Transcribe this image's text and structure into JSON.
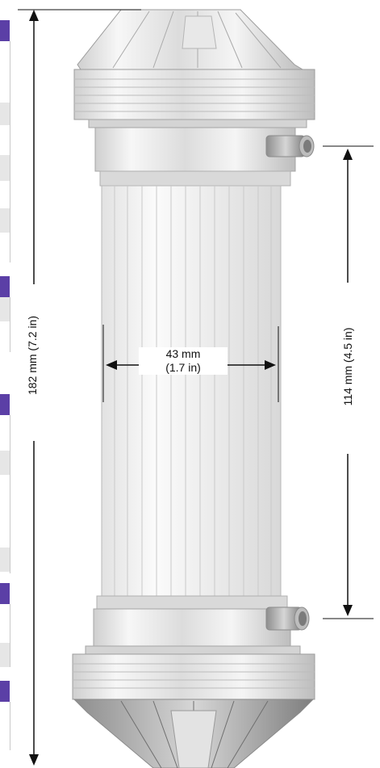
{
  "dimensions": {
    "overall_height": "182 mm (7.2 in)",
    "tube_length": "114 mm (4.5 in)",
    "diameter_mm": "43 mm",
    "diameter_in": "(1.7 in)"
  },
  "colors": {
    "tab_accent": "#5b3fa6",
    "line": "#111111"
  }
}
